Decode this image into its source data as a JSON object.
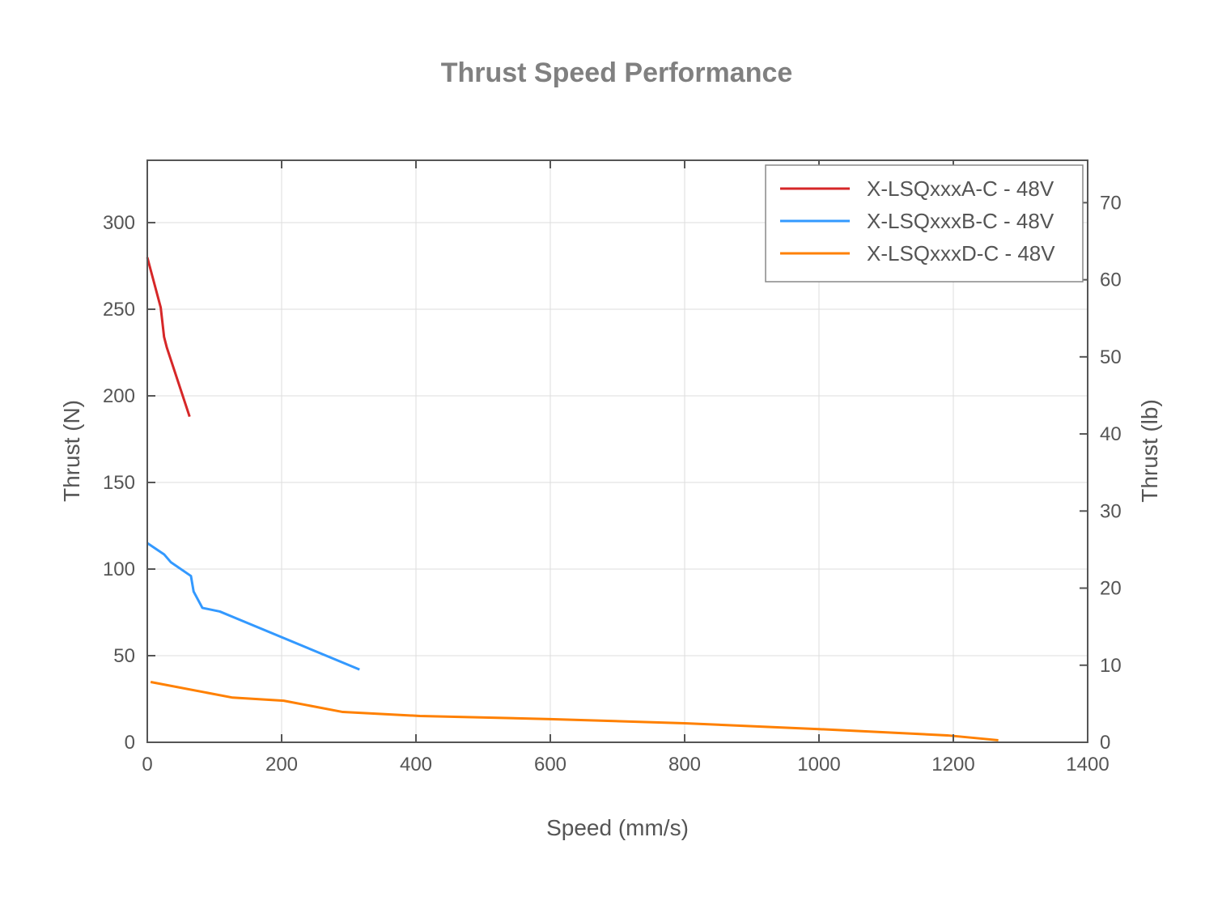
{
  "chart_data": {
    "type": "line",
    "title": "Thrust Speed Performance",
    "xlabel": "Speed (mm/s)",
    "ylabel": "Thrust (N)",
    "y2label": "Thrust (lb)",
    "xlim": [
      0,
      1400
    ],
    "ylim": [
      0,
      336
    ],
    "y2lim": [
      0,
      75.5
    ],
    "xticks": [
      0,
      200,
      400,
      600,
      800,
      1000,
      1200,
      1400
    ],
    "yticks": [
      0,
      50,
      100,
      150,
      200,
      250,
      300
    ],
    "y2ticks": [
      0,
      10,
      20,
      30,
      40,
      50,
      60,
      70
    ],
    "grid": true,
    "legend_position": "top-right",
    "series": [
      {
        "name": "X-LSQxxxA-C - 48V",
        "color": "#d62728",
        "x": [
          0,
          20,
          25,
          29,
          63
        ],
        "y": [
          280,
          251,
          234,
          228,
          188
        ]
      },
      {
        "name": "X-LSQxxxB-C - 48V",
        "color": "#3399ff",
        "x": [
          0,
          25,
          35,
          65,
          69,
          82,
          108,
          316
        ],
        "y": [
          115,
          108.5,
          104,
          96,
          87,
          77.6,
          75.5,
          42
        ]
      },
      {
        "name": "X-LSQxxxD-C - 48V",
        "color": "#ff8000",
        "x": [
          5,
          127,
          203,
          291,
          406,
          600,
          800,
          1000,
          1191,
          1267
        ],
        "y": [
          34.8,
          25.8,
          24,
          17.5,
          15.2,
          13.4,
          11,
          7.6,
          4,
          1.2
        ]
      }
    ]
  }
}
